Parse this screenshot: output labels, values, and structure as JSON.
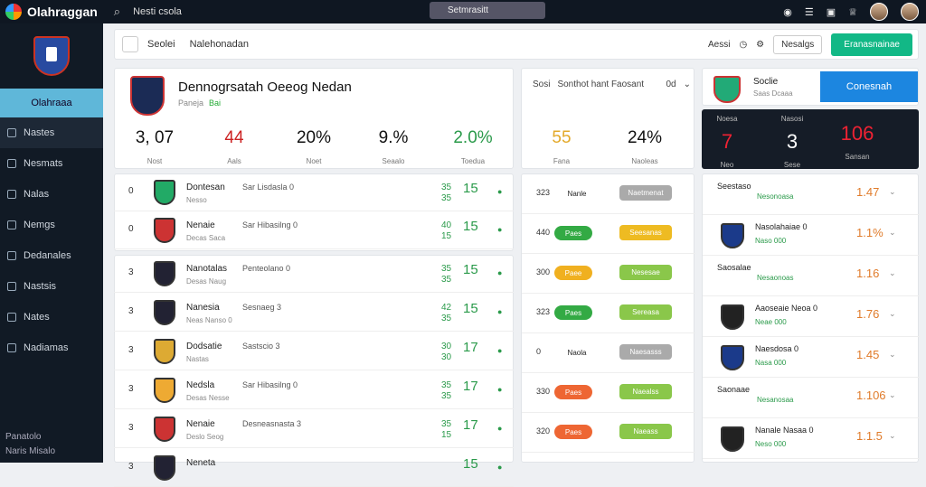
{
  "topbar": {
    "brand": "Olahraggan",
    "nav": "Nesti csola",
    "search": "Setmrasitt"
  },
  "sidebar": {
    "active": "Olahraaa",
    "items": [
      "Nastes",
      "Nesmats",
      "Nalas",
      "Nemgs",
      "Dedanales",
      "Nastsis",
      "Nates",
      "Nadiamas"
    ],
    "footer": [
      "Panatolo",
      "Naris Misalo"
    ]
  },
  "crumb": {
    "a": "Seolei",
    "b": "Nalehonadan",
    "filter1": "Aessi",
    "filter2": "Nesalgs",
    "cta": "Eranasnainae"
  },
  "header": {
    "title": "Dennogrsatah Oeeog Nedan",
    "sub": "Paneja",
    "sub2": "Bai",
    "stats": [
      {
        "v": "3, 07",
        "l": "Nost",
        "c": "#111"
      },
      {
        "v": "44",
        "l": "Aals",
        "c": "#c22"
      },
      {
        "v": "20%",
        "l": "Noet",
        "c": "#111"
      },
      {
        "v": "9.%",
        "l": "Seaalo",
        "c": "#111"
      },
      {
        "v": "2.0%",
        "l": "Toedua",
        "c": "#2a9a4a"
      }
    ]
  },
  "mid": {
    "head1": "Sosi",
    "head2": "Sonthot hant Faosant",
    "head3": "0d",
    "stats": [
      {
        "v": "55",
        "l": "Fana",
        "c": "#e3a92a"
      },
      {
        "v": "24%",
        "l": "Naoleas",
        "c": "#111"
      }
    ]
  },
  "right": {
    "team": "Soclie",
    "sub": "Saas Dcaaa",
    "button": "Conesnah",
    "dark": [
      {
        "a": "Noesa",
        "v": "7",
        "c": "Neo",
        "col": "#e23"
      },
      {
        "a": "Nasosi",
        "v": "3",
        "c": "Sese",
        "col": "#fff"
      },
      {
        "a": "",
        "v": "106",
        "c": "Sansan",
        "col": "#e23"
      }
    ]
  },
  "list": [
    {
      "n": "0",
      "nm": "Dontesan",
      "sub": "Nesso",
      "info": "Sar Lisdasla 0",
      "ex": [
        "35",
        "35"
      ],
      "big": "15",
      "col": "#2a6"
    },
    {
      "n": "0",
      "nm": "Nenaie",
      "sub": "Decas Saca",
      "info": "Sar Hibasilng 0",
      "ex": [
        "40",
        "15"
      ],
      "big": "15",
      "col": "#c33"
    },
    {
      "n": "3",
      "nm": "Nanotalas",
      "sub": "Desas Naug",
      "info": "Penteolano 0",
      "ex": [
        "35",
        "35"
      ],
      "big": "15",
      "col": "#223"
    },
    {
      "n": "3",
      "nm": "Nanesia",
      "sub": "Neas Nanso 0",
      "info": "Sesnaeg 3",
      "ex": [
        "42",
        "35"
      ],
      "big": "15",
      "col": "#223"
    },
    {
      "n": "3",
      "nm": "Dodsatie",
      "sub": "Nastas",
      "info": "Sastscio 3",
      "ex": [
        "30",
        "30"
      ],
      "big": "17",
      "col": "#da3"
    },
    {
      "n": "3",
      "nm": "Nedsla",
      "sub": "Desas Nesse",
      "info": "Sar Hibasilng 0",
      "ex": [
        "35",
        "35"
      ],
      "big": "17",
      "col": "#ea3"
    },
    {
      "n": "3",
      "nm": "Nenaie",
      "sub": "Deslo Seog",
      "info": "Desneasnasta 3",
      "ex": [
        "35",
        "15"
      ],
      "big": "17",
      "col": "#c33"
    },
    {
      "n": "3",
      "nm": "Neneta",
      "sub": "",
      "info": "",
      "ex": [
        "",
        ""
      ],
      "big": "15",
      "col": "#223"
    }
  ],
  "midlist": [
    {
      "c1": "323",
      "pill": "Nanle",
      "pc": "",
      "chip": "Naetmenat",
      "cc": "#aaa"
    },
    {
      "c1": "440",
      "pill": "Paes",
      "pc": "#33aa44",
      "chip": "Seesanas",
      "cc": "#eebb22"
    },
    {
      "c1": "300",
      "pill": "Paee",
      "pc": "#f0b020",
      "chip": "Nesesae",
      "cc": "#8ac74a"
    },
    {
      "c1": "323",
      "pill": "Paes",
      "pc": "#33aa44",
      "chip": "Sereasa",
      "cc": "#8ac74a"
    },
    {
      "c1": "0",
      "pill": "Naola",
      "pc": "",
      "chip": "Naesasss",
      "cc": "#aaa"
    },
    {
      "c1": "330",
      "pill": "Paes",
      "pc": "#ee6633",
      "chip": "Naealss",
      "cc": "#8ac74a"
    },
    {
      "c1": "320",
      "pill": "Paes",
      "pc": "#ee6633",
      "chip": "Naeass",
      "cc": "#8ac74a"
    }
  ],
  "rlist": [
    {
      "tx": "Seestaso",
      "tg": "Nesonoasa",
      "od": "1.47",
      "crest": ""
    },
    {
      "tx": "Nasolahaiae 0",
      "tg": "Naso 000",
      "od": "1.1%",
      "crest": "#1b3a8a"
    },
    {
      "tx": "Saosalae",
      "tg": "Nesaonoas",
      "od": "1.16",
      "crest": ""
    },
    {
      "tx": "Aaoseaie Neoa 0",
      "tg": "Neae 000",
      "od": "1.76",
      "crest": "#222"
    },
    {
      "tx": "Naesdosa 0",
      "tg": "Nasa 000",
      "od": "1.45",
      "crest": "#1b3a8a"
    },
    {
      "tx": "Saonaae",
      "tg": "Nesanosaa",
      "od": "1.106",
      "crest": ""
    },
    {
      "tx": "Nanale Nasaa 0",
      "tg": "Neso 000",
      "od": "1.1.5",
      "crest": "#222"
    }
  ]
}
